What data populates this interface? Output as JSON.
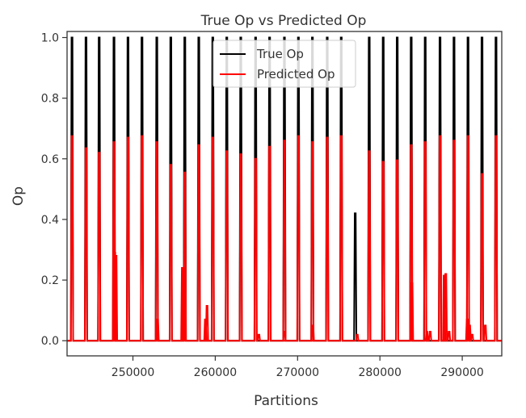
{
  "chart_data": {
    "type": "line",
    "title": "True Op vs Predicted Op",
    "xlabel": "Partitions",
    "ylabel": "Op",
    "xlim": [
      242000,
      294800
    ],
    "ylim": [
      -0.05,
      1.02
    ],
    "xticks": [
      250000,
      260000,
      270000,
      280000,
      290000
    ],
    "xtick_labels": [
      "250000",
      "260000",
      "270000",
      "280000",
      "290000"
    ],
    "yticks": [
      0.0,
      0.2,
      0.4,
      0.6,
      0.8,
      1.0
    ],
    "ytick_labels": [
      "0.0",
      "0.2",
      "0.4",
      "0.6",
      "0.8",
      "1.0"
    ],
    "grid": false,
    "legend_position": "top-center",
    "colors": {
      "true_op": "#000000",
      "predicted_op": "#ff0000",
      "frame": "#333333"
    },
    "spike_x": [
      242600,
      244300,
      245900,
      247700,
      249400,
      251100,
      252900,
      254600,
      256300,
      258000,
      259700,
      261400,
      263100,
      264900,
      266600,
      268400,
      270100,
      271800,
      273600,
      275300,
      277000,
      278700,
      280400,
      282100,
      283800,
      285500,
      287300,
      289000,
      290700,
      292400,
      294100
    ],
    "series": [
      {
        "name": "True Op",
        "values": [
          1.0,
          1.0,
          1.0,
          1.0,
          1.0,
          1.0,
          1.0,
          1.0,
          1.0,
          1.0,
          1.0,
          1.0,
          1.0,
          1.0,
          1.0,
          1.0,
          1.0,
          1.0,
          1.0,
          1.0,
          0.42,
          1.0,
          1.0,
          1.0,
          1.0,
          1.0,
          1.0,
          1.0,
          1.0,
          1.0,
          1.0
        ]
      },
      {
        "name": "Predicted Op",
        "values": [
          0.675,
          0.635,
          0.62,
          0.655,
          0.67,
          0.675,
          0.655,
          0.58,
          0.555,
          0.645,
          0.67,
          0.625,
          0.615,
          0.6,
          0.64,
          0.66,
          0.675,
          0.655,
          0.67,
          0.675,
          0.0,
          0.625,
          0.59,
          0.595,
          0.645,
          0.655,
          0.675,
          0.66,
          0.675,
          0.55,
          0.675
        ]
      }
    ],
    "predicted_small_spikes": {
      "x": [
        247800,
        247950,
        253000,
        256000,
        256150,
        258800,
        259000,
        265300,
        268400,
        271850,
        277250,
        283900,
        285700,
        286100,
        287800,
        288000,
        288400,
        290600,
        290900,
        291200,
        292800
      ],
      "values": [
        0.29,
        0.28,
        0.07,
        0.24,
        0.24,
        0.07,
        0.115,
        0.02,
        0.03,
        0.05,
        0.02,
        0.19,
        0.03,
        0.03,
        0.215,
        0.22,
        0.03,
        0.07,
        0.05,
        0.02,
        0.05
      ]
    }
  }
}
